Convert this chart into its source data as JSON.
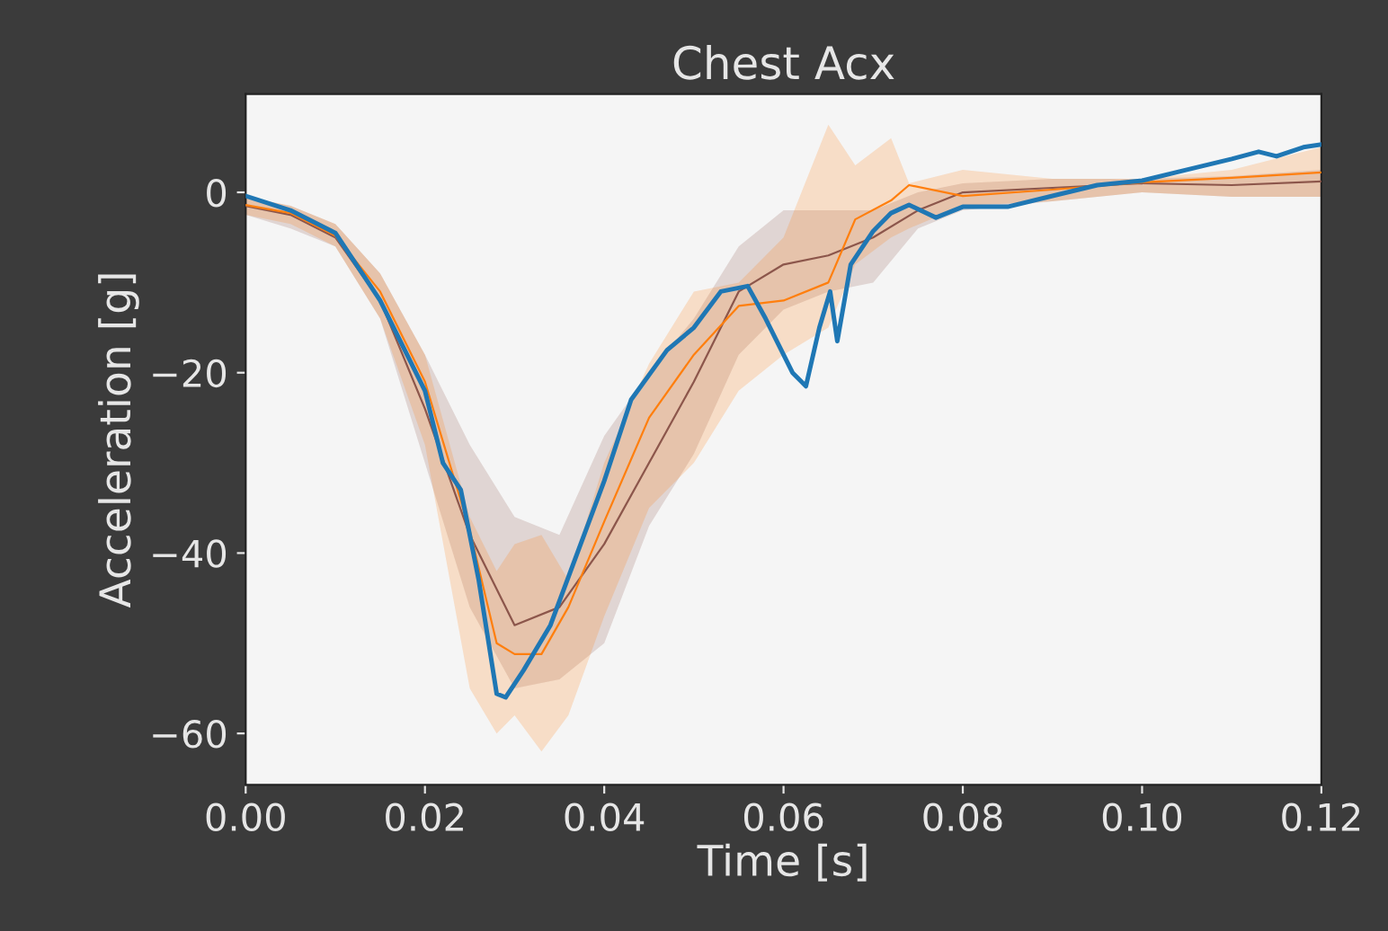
{
  "chart_data": {
    "type": "line",
    "title": "Chest Acx",
    "xlabel": "Time [s]",
    "ylabel": "Acceleration [g]",
    "xlim": [
      0,
      0.12
    ],
    "ylim": [
      -65.7,
      10.9
    ],
    "xticks": [
      {
        "value": 0,
        "label": "0.00"
      },
      {
        "value": 0.02,
        "label": "0.02"
      },
      {
        "value": 0.04,
        "label": "0.04"
      },
      {
        "value": 0.06,
        "label": "0.06"
      },
      {
        "value": 0.08,
        "label": "0.08"
      },
      {
        "value": 0.1,
        "label": "0.10"
      },
      {
        "value": 0.12,
        "label": "0.12"
      }
    ],
    "yticks": [
      {
        "value": -60,
        "label": "−60"
      },
      {
        "value": -40,
        "label": "−40"
      },
      {
        "value": -20,
        "label": "−20"
      },
      0
    ],
    "grid": false,
    "marker": "none",
    "line_style": "solid",
    "series": [
      {
        "color": "#8c564b",
        "x": [
          0,
          0.005,
          0.01,
          0.015,
          0.02,
          0.025,
          0.03,
          0.035,
          0.04,
          0.045,
          0.05,
          0.055,
          0.06,
          0.065,
          0.07,
          0.075,
          0.08,
          0.09,
          0.1,
          0.11,
          0.12
        ],
        "values": [
          -1.5,
          -2.5,
          -5,
          -12,
          -24,
          -38,
          -48,
          -46,
          -39,
          -30,
          -21,
          -11,
          -8,
          -7,
          -5,
          -2,
          0,
          0.5,
          1,
          0.8,
          1.2
        ],
        "lower": [
          -2.5,
          -4,
          -6,
          -14,
          -30,
          -46,
          -55,
          -54,
          -50,
          -37,
          -29,
          -18,
          -13,
          -11,
          -10,
          -4,
          -2,
          -1,
          0,
          -0.5,
          -0.5
        ],
        "upper": [
          -0.5,
          -1.5,
          -3.5,
          -9,
          -18,
          -28,
          -36,
          -38,
          -27,
          -20,
          -14,
          -6,
          -2,
          -2,
          -2,
          0,
          1,
          1.5,
          1.5,
          1.8,
          2.5
        ]
      },
      {
        "color": "#ff7f0e",
        "x": [
          0,
          0.005,
          0.01,
          0.015,
          0.02,
          0.025,
          0.028,
          0.03,
          0.033,
          0.036,
          0.04,
          0.045,
          0.05,
          0.055,
          0.06,
          0.065,
          0.068,
          0.072,
          0.074,
          0.08,
          0.09,
          0.1,
          0.11,
          0.12
        ],
        "values": [
          -1.4,
          -2.3,
          -4.8,
          -11,
          -21,
          -37.5,
          -50,
          -51.2,
          -51.2,
          -46,
          -36.5,
          -25,
          -18,
          -12.6,
          -12,
          -10,
          -3,
          -0.9,
          0.8,
          -0.4,
          0.3,
          1.1,
          1.6,
          2.2
        ],
        "lower": [
          -2.5,
          -3.5,
          -6,
          -14,
          -28,
          -55,
          -60,
          -58,
          -62,
          -58,
          -47,
          -35,
          -30,
          -22,
          -18,
          -15,
          -8,
          -5,
          -4,
          -1.5,
          -1,
          0,
          -0.5,
          -0.5
        ],
        "upper": [
          -0.5,
          -1.5,
          -3.5,
          -9,
          -18,
          -36,
          -42,
          -39,
          -38,
          -43,
          -30,
          -19,
          -11,
          -10,
          -5,
          7.5,
          3,
          6,
          1,
          2.5,
          1.5,
          1.5,
          2.5,
          5
        ]
      },
      {
        "color": "#1f77b4",
        "x": [
          0,
          0.005,
          0.01,
          0.015,
          0.02,
          0.022,
          0.024,
          0.026,
          0.028,
          0.029,
          0.031,
          0.034,
          0.037,
          0.04,
          0.043,
          0.047,
          0.05,
          0.053,
          0.056,
          0.058,
          0.061,
          0.0625,
          0.064,
          0.0652,
          0.066,
          0.0675,
          0.07,
          0.072,
          0.074,
          0.077,
          0.08,
          0.085,
          0.09,
          0.095,
          0.1,
          0.105,
          0.11,
          0.113,
          0.115,
          0.118,
          0.12
        ],
        "values": [
          -0.4,
          -2,
          -4.5,
          -12,
          -22,
          -30,
          -33,
          -43,
          -55.6,
          -56,
          -53,
          -48,
          -40,
          -32,
          -23,
          -17.5,
          -15,
          -11,
          -10.4,
          -14,
          -20,
          -21.5,
          -15,
          -11,
          -16.5,
          -8,
          -4.3,
          -2.3,
          -1.4,
          -2.8,
          -1.6,
          -1.6,
          -0.4,
          0.8,
          1.3,
          2.5,
          3.7,
          4.5,
          4,
          5,
          5.3
        ]
      }
    ]
  }
}
